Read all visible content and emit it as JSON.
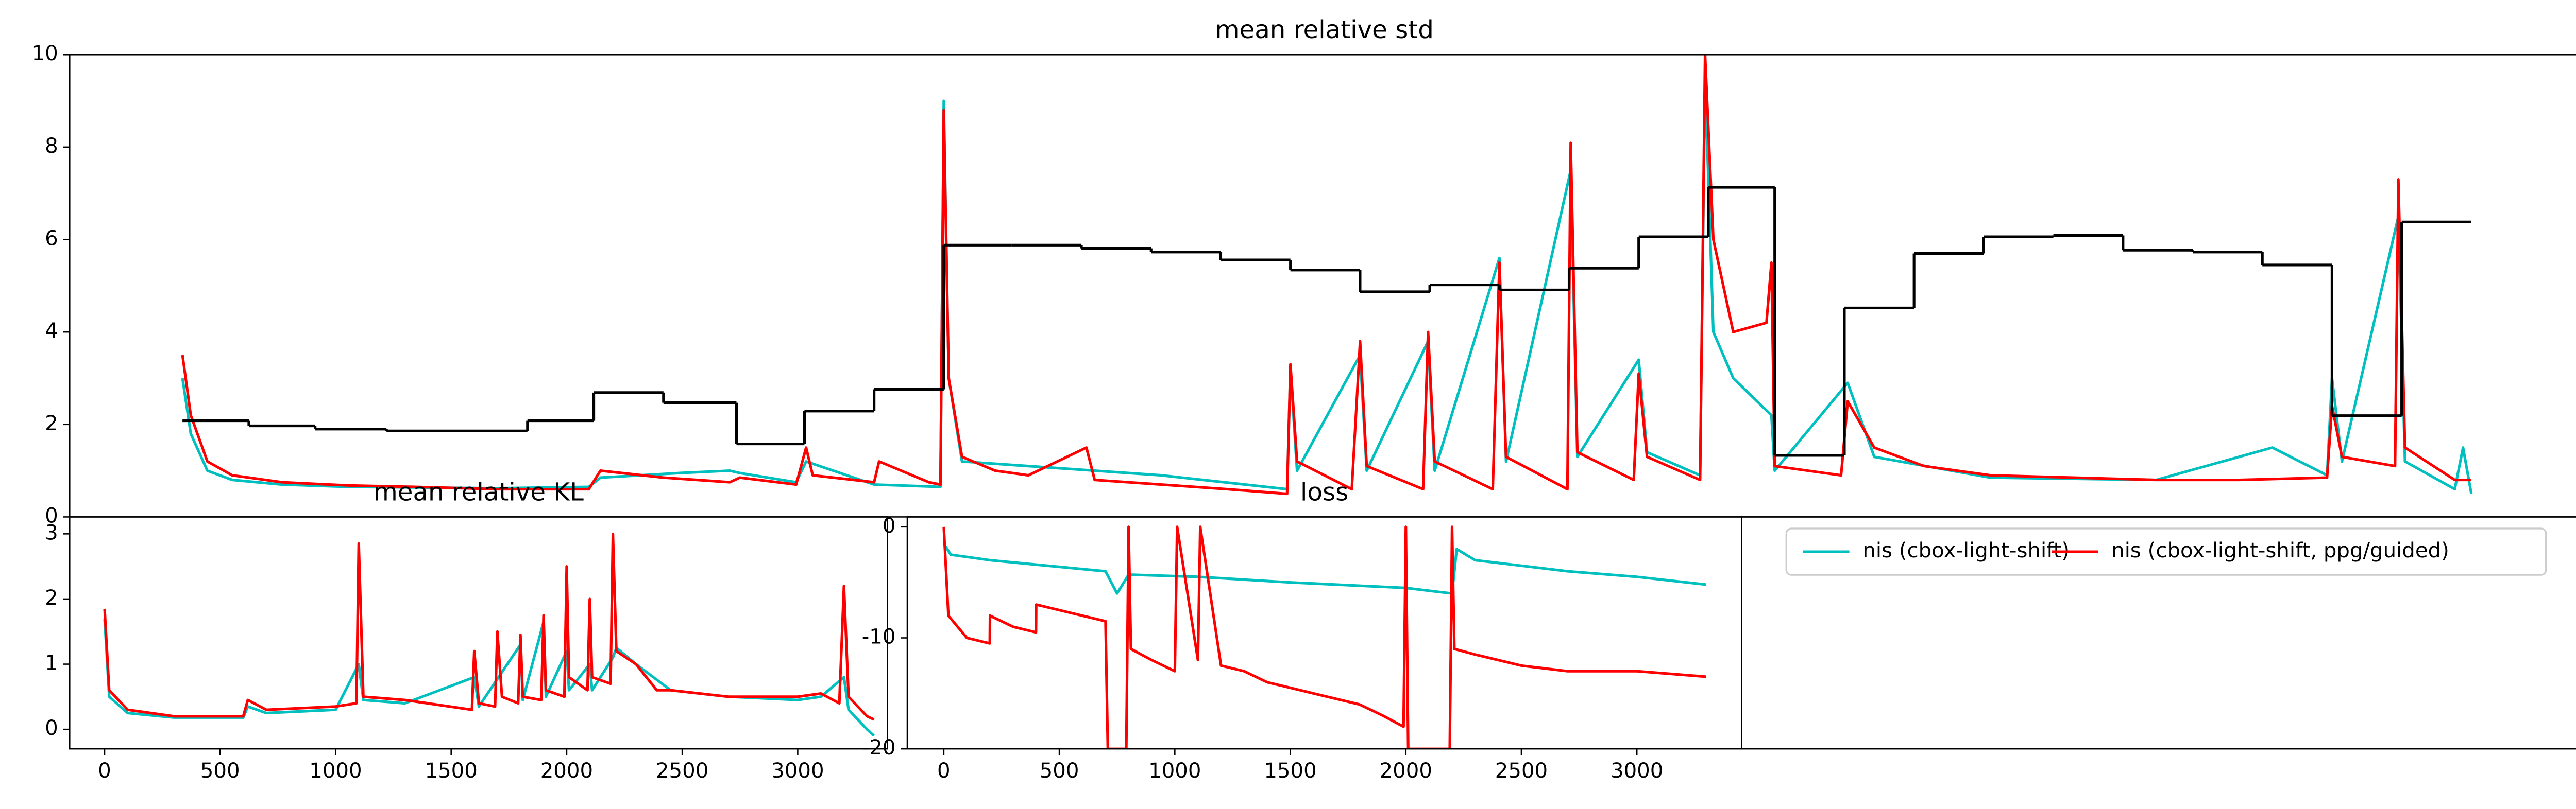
{
  "chart_data": [
    {
      "type": "line",
      "title": "mean relative std",
      "xlim": [
        -68,
        1445
      ],
      "ylim": [
        0,
        10
      ],
      "yticks": [
        0,
        2,
        4,
        6,
        8,
        10
      ],
      "series": [
        {
          "name": "nis (cbox-light-shift)",
          "color": "#00bfbf",
          "x": [
            0,
            5,
            15,
            30,
            60,
            100,
            190,
            245,
            252,
            300,
            330,
            336,
            370,
            376,
            417,
            457,
            459,
            462,
            470,
            510,
            550,
            590,
            666,
            668,
            672,
            710,
            714,
            751,
            755,
            794,
            798,
            837,
            841,
            878,
            883,
            915,
            918,
            923,
            935,
            958,
            960,
            1004,
            1020,
            1090,
            1190,
            1260,
            1293,
            1296,
            1302,
            1336,
            1340,
            1370,
            1375,
            1380
          ],
          "values": [
            3.0,
            1.8,
            1.0,
            0.8,
            0.7,
            0.65,
            0.62,
            0.65,
            0.85,
            0.95,
            1.0,
            0.95,
            0.75,
            1.2,
            0.7,
            0.65,
            9.0,
            3,
            1.2,
            1.1,
            1.0,
            0.9,
            0.6,
            3.2,
            1.0,
            3.5,
            1.0,
            3.8,
            1.0,
            5.6,
            1.2,
            7.5,
            1.3,
            3.4,
            1.4,
            0.9,
            9.5,
            4,
            3,
            2.2,
            1.0,
            2.9,
            1.3,
            0.85,
            0.8,
            1.5,
            0.9,
            3.0,
            1.2,
            6.5,
            1.2,
            0.6,
            1.5,
            0.5
          ]
        },
        {
          "name": "nis (cbox-light-shift, ppg/guided)",
          "color": "#ff0000",
          "x": [
            0,
            5,
            15,
            30,
            60,
            100,
            140,
            190,
            245,
            252,
            290,
            330,
            336,
            370,
            376,
            380,
            417,
            420,
            450,
            457,
            459,
            462,
            470,
            490,
            510,
            545,
            550,
            590,
            630,
            666,
            668,
            672,
            705,
            710,
            714,
            748,
            751,
            755,
            790,
            794,
            798,
            835,
            837,
            841,
            875,
            878,
            883,
            915,
            918,
            923,
            935,
            955,
            958,
            960,
            1000,
            1004,
            1020,
            1050,
            1090,
            1140,
            1190,
            1240,
            1293,
            1296,
            1302,
            1334,
            1336,
            1340,
            1370,
            1380
          ],
          "values": [
            3.5,
            2.2,
            1.2,
            0.9,
            0.75,
            0.68,
            0.65,
            0.6,
            0.6,
            1.0,
            0.85,
            0.75,
            0.85,
            0.7,
            1.5,
            0.9,
            0.75,
            1.2,
            0.75,
            0.7,
            8.8,
            3,
            1.3,
            1.0,
            0.9,
            1.5,
            0.8,
            0.7,
            0.6,
            0.5,
            3.3,
            1.2,
            0.6,
            3.8,
            1.1,
            0.6,
            4.0,
            1.2,
            0.6,
            5.5,
            1.3,
            0.6,
            8.1,
            1.4,
            0.8,
            3.1,
            1.3,
            0.8,
            10,
            6,
            4,
            4.2,
            5.5,
            1.1,
            0.9,
            2.5,
            1.5,
            1.1,
            0.9,
            0.85,
            0.8,
            0.8,
            0.85,
            2.4,
            1.3,
            1.1,
            7.3,
            1.5,
            0.8,
            0.8
          ]
        },
        {
          "color": "#000000",
          "drawstyle": "steps",
          "bins": [
            0,
            40,
            80,
            123,
            208,
            248,
            290,
            334,
            375,
            417,
            459,
            500,
            542,
            584,
            626,
            668,
            710,
            752,
            794,
            836,
            878,
            920,
            960,
            1002,
            1044,
            1086,
            1128,
            1170,
            1212,
            1254,
            1296,
            1338,
            1380
          ],
          "values": [
            2.08,
            1.97,
            1.9,
            1.86,
            2.08,
            2.69,
            2.47,
            1.58,
            2.29,
            2.76,
            5.88,
            5.88,
            5.81,
            5.73,
            5.56,
            5.34,
            4.87,
            5.02,
            4.91,
            5.38,
            6.06,
            7.13,
            1.33,
            4.52,
            5.7,
            6.06,
            6.09,
            5.77,
            5.73,
            5.45,
            2.19,
            6.38
          ]
        }
      ]
    },
    {
      "type": "line",
      "title": "mean relative KL",
      "xlim": [
        -151,
        3388
      ],
      "ylim": [
        -0.3,
        3.26
      ],
      "yticks": [
        0,
        1,
        2,
        3
      ],
      "xticks": [
        0,
        500,
        1000,
        1500,
        2000,
        2500,
        3000
      ],
      "series": [
        {
          "name": "nis (cbox-light-shift)",
          "color": "#00bfbf",
          "x": [
            0,
            20,
            100,
            300,
            600,
            620,
            700,
            1000,
            1100,
            1120,
            1300,
            1600,
            1620,
            1800,
            1810,
            1900,
            1910,
            2000,
            2010,
            2100,
            2110,
            2200,
            2215,
            2300,
            2450,
            2700,
            3000,
            3100,
            3200,
            3220,
            3300,
            3330
          ],
          "values": [
            1.7,
            0.5,
            0.25,
            0.18,
            0.18,
            0.35,
            0.25,
            0.3,
            1.0,
            0.45,
            0.4,
            0.8,
            0.35,
            1.3,
            0.45,
            1.65,
            0.5,
            1.2,
            0.6,
            1.0,
            0.6,
            1.1,
            1.25,
            1.0,
            0.6,
            0.5,
            0.45,
            0.5,
            0.8,
            0.3,
            0.0,
            -0.1
          ]
        },
        {
          "name": "nis (cbox-light-shift, ppg/guided)",
          "color": "#ff0000",
          "x": [
            0,
            20,
            100,
            300,
            600,
            620,
            700,
            1000,
            1090,
            1100,
            1120,
            1300,
            1590,
            1600,
            1620,
            1690,
            1700,
            1720,
            1790,
            1800,
            1810,
            1890,
            1900,
            1910,
            1990,
            2000,
            2010,
            2090,
            2100,
            2110,
            2190,
            2200,
            2215,
            2300,
            2390,
            2450,
            2700,
            3000,
            3100,
            3180,
            3200,
            3220,
            3300,
            3330
          ],
          "values": [
            1.85,
            0.6,
            0.3,
            0.2,
            0.2,
            0.45,
            0.3,
            0.35,
            0.4,
            2.85,
            0.5,
            0.45,
            0.3,
            1.2,
            0.4,
            0.35,
            1.5,
            0.5,
            0.4,
            1.45,
            0.5,
            0.45,
            1.75,
            0.6,
            0.5,
            2.5,
            0.8,
            0.6,
            2.0,
            0.8,
            0.7,
            3.0,
            1.2,
            1.0,
            0.6,
            0.6,
            0.5,
            0.5,
            0.55,
            0.4,
            2.2,
            0.5,
            0.2,
            0.15
          ]
        }
      ]
    },
    {
      "type": "line",
      "title": "loss",
      "xlim": [
        -158,
        3453
      ],
      "ylim": [
        -20,
        0.9
      ],
      "yticks": [
        0,
        -10,
        -20
      ],
      "xticks": [
        0,
        500,
        1000,
        1500,
        2000,
        2500,
        3000
      ],
      "series": [
        {
          "name": "nis (cbox-light-shift)",
          "color": "#00bfbf",
          "x": [
            0,
            30,
            200,
            600,
            700,
            750,
            800,
            1100,
            1500,
            2000,
            2200,
            2220,
            2300,
            2700,
            3000,
            3300
          ],
          "values": [
            -1.5,
            -2.5,
            -3,
            -3.8,
            -4,
            -6,
            -4.3,
            -4.5,
            -5,
            -5.5,
            -6,
            -2,
            -3,
            -4,
            -4.5,
            -5.2
          ]
        },
        {
          "name": "nis (cbox-light-shift, ppg/guided)",
          "color": "#ff0000",
          "x": [
            0,
            20,
            100,
            199,
            200,
            300,
            399,
            400,
            600,
            700,
            710,
            790,
            800,
            810,
            900,
            1000,
            1010,
            1100,
            1110,
            1200,
            1300,
            1400,
            1500,
            1600,
            1700,
            1800,
            1900,
            1990,
            2000,
            2010,
            2100,
            2190,
            2200,
            2210,
            2300,
            2400,
            2500,
            2700,
            3000,
            3300
          ],
          "values": [
            0,
            -8,
            -10,
            -10.5,
            -8,
            -9,
            -9.5,
            -7,
            -8,
            -8.5,
            -20,
            -20,
            0,
            -11,
            -12,
            -13,
            0,
            -12,
            0,
            -12.5,
            -13,
            -14,
            -14.5,
            -15,
            -15.5,
            -16,
            -17,
            -18,
            0,
            -20,
            -20,
            -20,
            0,
            -11,
            -11.5,
            -12,
            -12.5,
            -13,
            -13,
            -13.5
          ]
        }
      ]
    }
  ]
}
